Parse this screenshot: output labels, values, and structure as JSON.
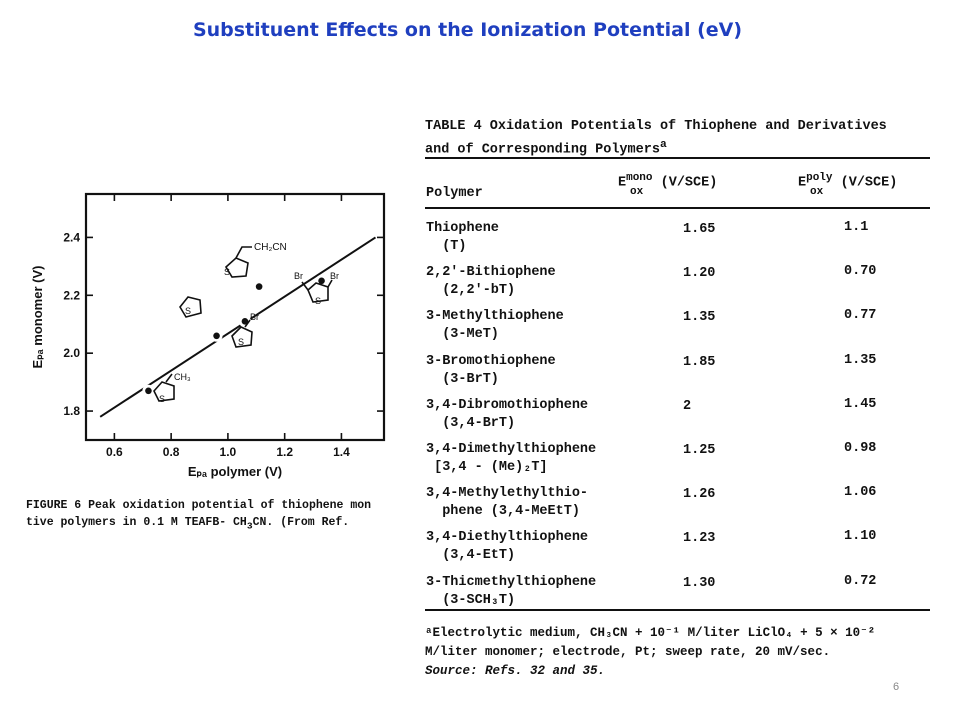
{
  "slide": {
    "title": "Substituent Effects on the Ionization Potential (eV)",
    "page_number": "6"
  },
  "figure": {
    "caption_line1": "FIGURE 6  Peak oxidation potential of thiophene mon",
    "caption_line2": "tive polymers in 0.1 M TEAFB- CH",
    "caption_sub": "3",
    "caption_line2_end": "CN.  (From Ref.",
    "structure_labels": {
      "ch2cn": "CH₂CN",
      "ch3": "CH₃",
      "br": "Br",
      "s": "S"
    }
  },
  "chart_data": {
    "type": "scatter",
    "xlabel": "E_pa polymer (V)",
    "ylabel": "E_pa monomer (V)",
    "x_ticks": [
      "0.6",
      "0.8",
      "1.0",
      "1.2",
      "1.4"
    ],
    "y_ticks": [
      "1.8",
      "2.0",
      "2.2",
      "2.4"
    ],
    "xlim": [
      0.5,
      1.55
    ],
    "ylim": [
      1.7,
      2.55
    ],
    "points": [
      {
        "x": 0.72,
        "y": 1.87
      },
      {
        "x": 0.96,
        "y": 2.06
      },
      {
        "x": 1.06,
        "y": 2.11
      },
      {
        "x": 1.11,
        "y": 2.23
      },
      {
        "x": 1.33,
        "y": 2.25
      }
    ],
    "fit_line": {
      "x": [
        0.55,
        1.52
      ],
      "y": [
        1.78,
        2.4
      ]
    }
  },
  "table": {
    "title_line1": "TABLE 4  Oxidation Potentials of Thiophene and Derivatives",
    "title_line2": "and of Corresponding Polymers",
    "title_sup": "a",
    "header_polymer": "Polymer",
    "header_mono": "E",
    "header_mono_sup": "mono",
    "header_mono_sub": "ox",
    "header_mono_unit": "(V/SCE)",
    "header_poly": "E",
    "header_poly_sup": "poly",
    "header_poly_sub": "ox",
    "header_poly_unit": "(V/SCE)",
    "rows": [
      {
        "name1": "Thiophene",
        "name2": "  (T)",
        "mono": "1.65",
        "poly": "1.1"
      },
      {
        "name1": "2,2'-Bithiophene",
        "name2": "  (2,2'-bT)",
        "mono": "1.20",
        "poly": "0.70"
      },
      {
        "name1": "3-Methylthiophene",
        "name2": "  (3-MeT)",
        "mono": "1.35",
        "poly": "0.77"
      },
      {
        "name1": "3-Bromothiophene",
        "name2": "  (3-BrT)",
        "mono": "1.85",
        "poly": "1.35"
      },
      {
        "name1": "3,4-Dibromothiophene",
        "name2": "  (3,4-BrT)",
        "mono": "2",
        "poly": "1.45"
      },
      {
        "name1": "3,4-Dimethylthiophene",
        "name2": " [3,4 - (Me)₂T]",
        "mono": "1.25",
        "poly": "0.98"
      },
      {
        "name1": "3,4-Methylethylthio-",
        "name2": "  phene (3,4-MeEtT)",
        "mono": "1.26",
        "poly": "1.06"
      },
      {
        "name1": "3,4-Diethylthiophene",
        "name2": "  (3,4-EtT)",
        "mono": "1.23",
        "poly": "1.10"
      },
      {
        "name1": "3-Thicmethylthiophene",
        "name2": "  (3-SCH₃T)",
        "mono": "1.30",
        "poly": "0.72"
      }
    ],
    "footnote_line1": "ᵃElectrolytic medium, CH₃CN + 10⁻¹ M/liter LiClO₄ + 5 × 10⁻²",
    "footnote_line2": "M/liter monomer; electrode, Pt; sweep rate, 20 mV/sec.",
    "footnote_line3": "Source:  Refs. 32 and 35."
  },
  "colors": {
    "title": "#1f3fbf",
    "ink": "#111111"
  }
}
